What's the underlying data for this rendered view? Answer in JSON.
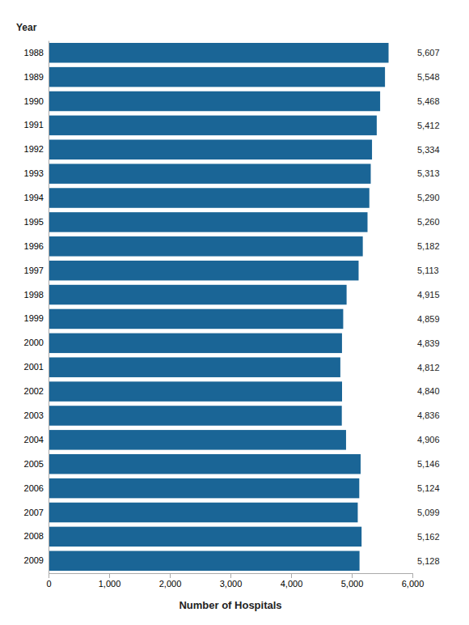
{
  "chart_data": {
    "type": "bar",
    "orientation": "horizontal",
    "categories": [
      "1988",
      "1989",
      "1990",
      "1991",
      "1992",
      "1993",
      "1994",
      "1995",
      "1996",
      "1997",
      "1998",
      "1999",
      "2000",
      "2001",
      "2002",
      "2003",
      "2004",
      "2005",
      "2006",
      "2007",
      "2008",
      "2009"
    ],
    "values": [
      5607,
      5548,
      5468,
      5412,
      5334,
      5313,
      5290,
      5260,
      5182,
      5113,
      4915,
      4859,
      4839,
      4812,
      4840,
      4836,
      4906,
      5146,
      5124,
      5099,
      5162,
      5128
    ],
    "value_labels": [
      "5,607",
      "5,548",
      "5,468",
      "5,412",
      "5,334",
      "5,313",
      "5,290",
      "5,260",
      "5,182",
      "5,113",
      "4,915",
      "4,859",
      "4,839",
      "4,812",
      "4,840",
      "4,836",
      "4,906",
      "5,146",
      "5,124",
      "5,099",
      "5,162",
      "5,128"
    ],
    "data_labels": true,
    "color": "#1a6596",
    "xlabel": "Number of Hospitals",
    "ylabel": "Year",
    "xlim": [
      0,
      6000
    ],
    "xticks": [
      0,
      {
        "value": 1000,
        "label": "1,000"
      },
      {
        "value": 2000,
        "label": "2,000"
      },
      {
        "value": 3000,
        "label": "3,000"
      },
      {
        "value": 4000,
        "label": "4,000"
      },
      {
        "value": 5000,
        "label": "5,000"
      },
      {
        "value": 6000,
        "label": "6,000"
      }
    ],
    "grid": false
  }
}
